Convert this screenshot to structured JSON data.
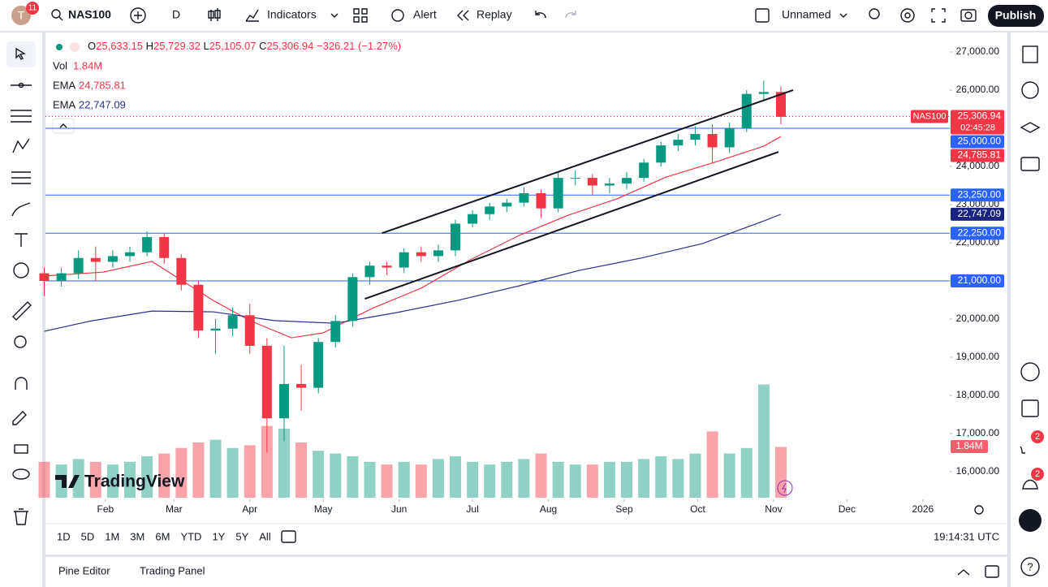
{
  "header": {
    "avatar": "T",
    "notifications": "11",
    "symbol": "NAS100",
    "interval": "D",
    "indicators": "Indicators",
    "alert": "Alert",
    "replay": "Replay",
    "layout": "Unnamed",
    "publish": "Publish"
  },
  "legend": {
    "open_label": "O",
    "open": "25,633.15",
    "high_label": "H",
    "high": "25,729.32",
    "low_label": "L",
    "low": "25,105.07",
    "close_label": "C",
    "close": "25,306.94",
    "change": "−326.21 (−1.27%)",
    "vol_label": "Vol",
    "vol": "1.84M",
    "ema1": "24,785.81",
    "ema2": "22,747.09"
  },
  "chart_data": {
    "type": "candlestick",
    "x": [
      6,
      13,
      20,
      27,
      34,
      41,
      48,
      55,
      62,
      69,
      76,
      83,
      90,
      97,
      104,
      111,
      118,
      125,
      132,
      139,
      146,
      153,
      160,
      167,
      174,
      181,
      188,
      195,
      202,
      209,
      216,
      223,
      230,
      237,
      244,
      251,
      258,
      265,
      272,
      279,
      286,
      293,
      300,
      307
    ],
    "open": [
      21200,
      21000,
      21200,
      21600,
      21500,
      21650,
      21750,
      22150,
      21600,
      20900,
      19700,
      19750,
      20100,
      19300,
      17400,
      18300,
      18200,
      19400,
      19950,
      21100,
      21400,
      21350,
      21750,
      21650,
      21800,
      22500,
      22750,
      22950,
      23050,
      23300,
      22900,
      23700,
      23700,
      23500,
      23550,
      23700,
      24100,
      24550,
      24700,
      24850,
      24500,
      25000,
      25900,
      25950
    ],
    "high": [
      21350,
      21350,
      21800,
      21900,
      21800,
      21900,
      22300,
      22250,
      21700,
      21000,
      20000,
      20300,
      20400,
      19500,
      19300,
      18800,
      19500,
      20100,
      21200,
      21500,
      21500,
      21850,
      21900,
      21950,
      22600,
      22850,
      23050,
      23150,
      23450,
      23400,
      23850,
      23900,
      23800,
      23700,
      23850,
      24200,
      24650,
      24850,
      25050,
      25100,
      25150,
      26000,
      26250,
      26100
    ],
    "low": [
      20600,
      20850,
      21050,
      21000,
      21350,
      21500,
      21650,
      21450,
      20750,
      19500,
      19100,
      19550,
      19100,
      16500,
      16800,
      17600,
      18050,
      19250,
      19800,
      20900,
      21150,
      21200,
      21500,
      21500,
      21650,
      22400,
      22600,
      22800,
      22950,
      22650,
      22800,
      23500,
      23250,
      23300,
      23400,
      23600,
      24000,
      24400,
      24550,
      24100,
      24350,
      24900,
      25700,
      25100
    ],
    "close": [
      21000,
      21200,
      21600,
      21500,
      21650,
      21750,
      22150,
      21600,
      20900,
      19700,
      19750,
      20100,
      19300,
      17400,
      18300,
      18200,
      19400,
      19950,
      21100,
      21400,
      21350,
      21750,
      21650,
      21800,
      22500,
      22750,
      22950,
      23050,
      23300,
      22900,
      23700,
      23700,
      23500,
      23550,
      23700,
      24100,
      24550,
      24700,
      24850,
      24500,
      25000,
      25900,
      25950,
      25300
    ],
    "volume": [
      1.3,
      1.2,
      1.4,
      1.3,
      1.2,
      1.3,
      1.5,
      1.6,
      1.8,
      2.0,
      2.1,
      1.8,
      1.9,
      2.6,
      2.5,
      2.0,
      1.7,
      1.6,
      1.5,
      1.3,
      1.2,
      1.3,
      1.2,
      1.4,
      1.5,
      1.3,
      1.2,
      1.3,
      1.4,
      1.6,
      1.3,
      1.2,
      1.2,
      1.3,
      1.3,
      1.4,
      1.5,
      1.4,
      1.6,
      2.4,
      1.6,
      1.8,
      4.1,
      1.84
    ],
    "volume_label": "1.84M",
    "up_color": "#089981",
    "down_color": "#f23645",
    "series": [
      {
        "name": "EMA",
        "color": "#f23645",
        "x": [
          6,
          30,
          50,
          62,
          75,
          90,
          107,
          120,
          140,
          160,
          180,
          200,
          220,
          240,
          260,
          280,
          300,
          307
        ],
        "values": [
          21130,
          21230,
          21510,
          21020,
          20490,
          19960,
          19510,
          19640,
          20280,
          20810,
          21550,
          22190,
          22720,
          23150,
          23720,
          24110,
          24530,
          24785.81
        ]
      },
      {
        "name": "EMA",
        "color": "#2a2e8f",
        "x": [
          6,
          25,
          50,
          75,
          100,
          125,
          150,
          175,
          200,
          225,
          250,
          275,
          300,
          307
        ],
        "values": [
          19680,
          19950,
          20210,
          20190,
          19960,
          19890,
          20170,
          20490,
          20870,
          21280,
          21600,
          21980,
          22570,
          22747.09
        ]
      }
    ],
    "trendlines": [
      {
        "x": [
          144,
          312
        ],
        "values": [
          22250,
          26000
        ]
      },
      {
        "x": [
          137,
          306
        ],
        "values": [
          20530,
          24380
        ]
      }
    ],
    "price_labels": [
      {
        "value": 25306.94,
        "label": "25,306.94",
        "color": "#f23645",
        "tag": "NAS100",
        "sublabel": "02:45:28",
        "line": "dotted"
      },
      {
        "value": 25000,
        "label": "25,000.00",
        "color": "#2962ff",
        "line": "solid"
      },
      {
        "value": 24785.81,
        "label": "24,785.81",
        "color": "#f23645"
      },
      {
        "value": 23250,
        "label": "23,250.00",
        "color": "#2962ff",
        "line": "solid"
      },
      {
        "value": 22747.09,
        "label": "22,747.09",
        "color": "#1a237e"
      },
      {
        "value": 22250,
        "label": "22,250.00",
        "color": "#2962ff",
        "line": "solid"
      },
      {
        "value": 21000,
        "label": "21,000.00",
        "color": "#2962ff",
        "line": "solid"
      }
    ],
    "xlim": [
      6.5,
      376
    ],
    "xticks": [
      {
        "value": 31,
        "label": "Feb"
      },
      {
        "value": 59,
        "label": "Mar"
      },
      {
        "value": 90,
        "label": "Apr"
      },
      {
        "value": 120,
        "label": "May"
      },
      {
        "value": 151,
        "label": "Jun"
      },
      {
        "value": 181,
        "label": "Jul"
      },
      {
        "value": 212,
        "label": "Aug"
      },
      {
        "value": 243,
        "label": "Sep"
      },
      {
        "value": 273,
        "label": "Oct"
      },
      {
        "value": 304,
        "label": "Nov"
      },
      {
        "value": 334,
        "label": "Dec"
      },
      {
        "value": 365,
        "label": "2026"
      }
    ],
    "ylim": [
      15277,
      27510
    ],
    "yticks": [
      {
        "value": 27000,
        "label": "27,000.00"
      },
      {
        "value": 26000,
        "label": "26,000.00"
      },
      {
        "value": 25000,
        "label": "25,000.00"
      },
      {
        "value": 24000,
        "label": "24,000.00"
      },
      {
        "value": 23000,
        "label": "23,000.00"
      },
      {
        "value": 22000,
        "label": "22,000.00"
      },
      {
        "value": 21000,
        "label": "21,000.00"
      },
      {
        "value": 20000,
        "label": "20,000.00"
      },
      {
        "value": 19000,
        "label": "19,000.00"
      },
      {
        "value": 18000,
        "label": "18,000.00"
      },
      {
        "value": 17000,
        "label": "17,000.00"
      },
      {
        "value": 16000,
        "label": "16,000.00"
      }
    ],
    "grid": false
  },
  "watermark": "TradingView",
  "footer": {
    "ranges": [
      "1D",
      "5D",
      "1M",
      "3M",
      "6M",
      "YTD",
      "1Y",
      "5Y",
      "All"
    ],
    "clock": "19:14:31 UTC",
    "tabs": [
      "Pine Editor",
      "Trading Panel"
    ]
  },
  "sidebar": {
    "badges": [
      "2",
      "2"
    ]
  }
}
